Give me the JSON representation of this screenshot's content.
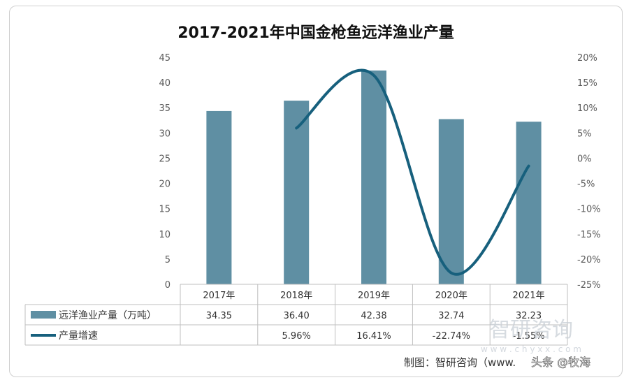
{
  "chart_data": {
    "type": "bar+line",
    "title": "2017-2021年中国金枪鱼远洋渔业产量",
    "categories": [
      "2017年",
      "2018年",
      "2019年",
      "2020年",
      "2021年"
    ],
    "series": [
      {
        "name": "远洋渔业产量（万吨）",
        "type": "bar",
        "axis": "left",
        "values": [
          34.35,
          36.4,
          42.38,
          32.74,
          32.23
        ],
        "labels": [
          "34.35",
          "36.40",
          "42.38",
          "32.74",
          "32.23"
        ],
        "color": "#5f8fa3"
      },
      {
        "name": "产量增速",
        "type": "line",
        "axis": "right",
        "values": [
          null,
          5.96,
          16.41,
          -22.74,
          -1.55
        ],
        "labels": [
          "",
          "5.96%",
          "16.41%",
          "-22.74%",
          "-1.55%"
        ],
        "color": "#17607d"
      }
    ],
    "y_left": {
      "min": 0,
      "max": 45,
      "step": 5,
      "ticks": [
        "0",
        "5",
        "10",
        "15",
        "20",
        "25",
        "30",
        "35",
        "40",
        "45"
      ]
    },
    "y_right": {
      "min": -25,
      "max": 20,
      "step": 5,
      "ticks": [
        "-25%",
        "-20%",
        "-15%",
        "-10%",
        "-5%",
        "0%",
        "5%",
        "10%",
        "15%",
        "20%"
      ]
    },
    "grid": false,
    "legend": "data-table-below"
  },
  "footer": {
    "source": "制图：智研咨询（www.",
    "watermark": "头条 @牧海",
    "logo_text": "智研咨询",
    "logo_url": "w w w . c h y x x . c o m"
  }
}
